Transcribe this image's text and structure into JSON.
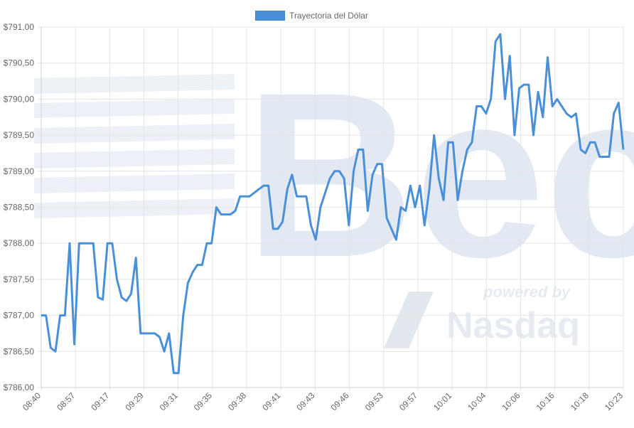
{
  "chart_data": {
    "type": "line",
    "legend": "Trayectoria del Dólar",
    "line_color": "#4a90d9",
    "grid": true,
    "legend_position": "top-center",
    "ylim": [
      786.0,
      791.0
    ],
    "y_ticks": [
      "$791,00",
      "$790,50",
      "$790,00",
      "$789,50",
      "$789,00",
      "$788,50",
      "$788,00",
      "$787,50",
      "$787,00",
      "$786,50",
      "$786,00"
    ],
    "x_ticks": [
      "08:40",
      "08:57",
      "09:17",
      "09:29",
      "09:31",
      "09:35",
      "09:38",
      "09:41",
      "09:43",
      "09:46",
      "09:53",
      "09:57",
      "10:01",
      "10:04",
      "10:06",
      "10:16",
      "10:18",
      "10:23"
    ],
    "watermark": {
      "logo": "Bec",
      "tagline": "powered by",
      "brand": "Nasdaq"
    },
    "series": [
      {
        "name": "Trayectoria del Dólar",
        "values": [
          787.0,
          787.0,
          786.55,
          786.5,
          787.0,
          787.0,
          788.0,
          786.6,
          788.0,
          788.0,
          788.0,
          788.0,
          787.25,
          787.22,
          788.0,
          788.0,
          787.5,
          787.25,
          787.2,
          787.3,
          787.8,
          786.75,
          786.75,
          786.75,
          786.75,
          786.7,
          786.5,
          786.75,
          786.2,
          786.2,
          787.0,
          787.45,
          787.6,
          787.7,
          787.7,
          788.0,
          788.0,
          788.5,
          788.4,
          788.4,
          788.4,
          788.45,
          788.65,
          788.65,
          788.65,
          788.7,
          788.75,
          788.8,
          788.8,
          788.2,
          788.2,
          788.3,
          788.75,
          788.95,
          788.65,
          788.65,
          788.65,
          788.25,
          788.05,
          788.5,
          788.7,
          788.9,
          789.0,
          789.0,
          788.9,
          788.25,
          789.0,
          789.3,
          789.3,
          788.45,
          788.95,
          789.1,
          789.1,
          788.35,
          788.2,
          788.05,
          788.5,
          788.45,
          788.8,
          788.5,
          788.8,
          788.25,
          788.75,
          789.5,
          788.9,
          788.6,
          789.4,
          789.4,
          788.6,
          789.0,
          789.3,
          789.4,
          789.9,
          789.9,
          789.8,
          790.0,
          790.8,
          790.9,
          790.0,
          790.6,
          789.5,
          790.15,
          790.2,
          790.2,
          789.5,
          790.1,
          789.75,
          790.58,
          789.9,
          790.0,
          789.9,
          789.8,
          789.75,
          789.8,
          789.3,
          789.25,
          789.4,
          789.4,
          789.2,
          789.2,
          789.2,
          789.8,
          789.95,
          789.3
        ]
      }
    ]
  }
}
